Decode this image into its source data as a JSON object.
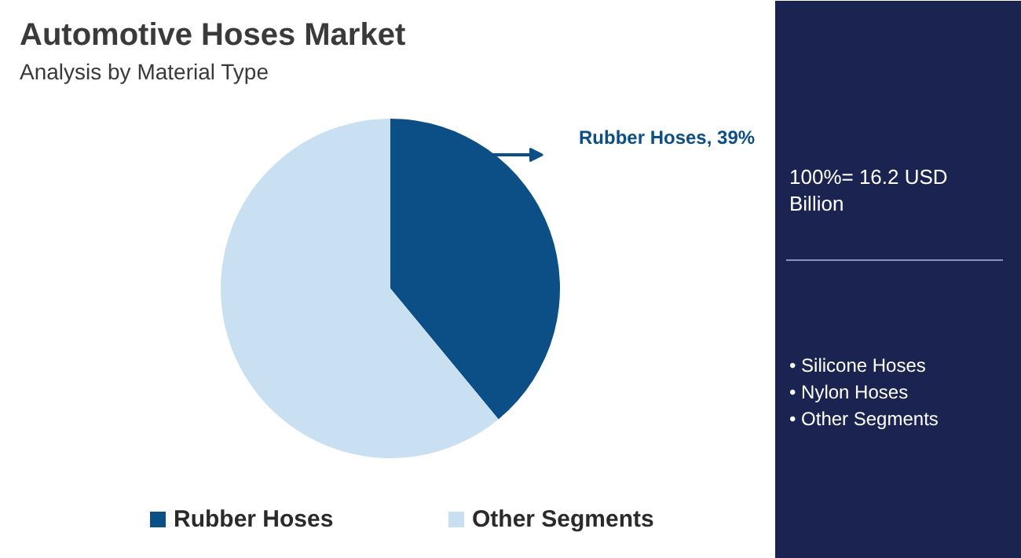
{
  "chart_data": {
    "type": "pie",
    "title": "Automotive Hoses Market",
    "subtitle": "Analysis by Material Type",
    "categories": [
      "Rubber Hoses",
      "Other Segments"
    ],
    "values": [
      39,
      61
    ],
    "colors": [
      "#0b4f86",
      "#c8e0f1"
    ],
    "value_labels": [
      "Rubber Hoses, 39%",
      null
    ],
    "legend": "bottom",
    "annotations": [
      "100%= 16.2 USD Billion",
      "• Silicone Hoses",
      "• Nylon Hoses",
      "• Other Segments"
    ]
  }
}
